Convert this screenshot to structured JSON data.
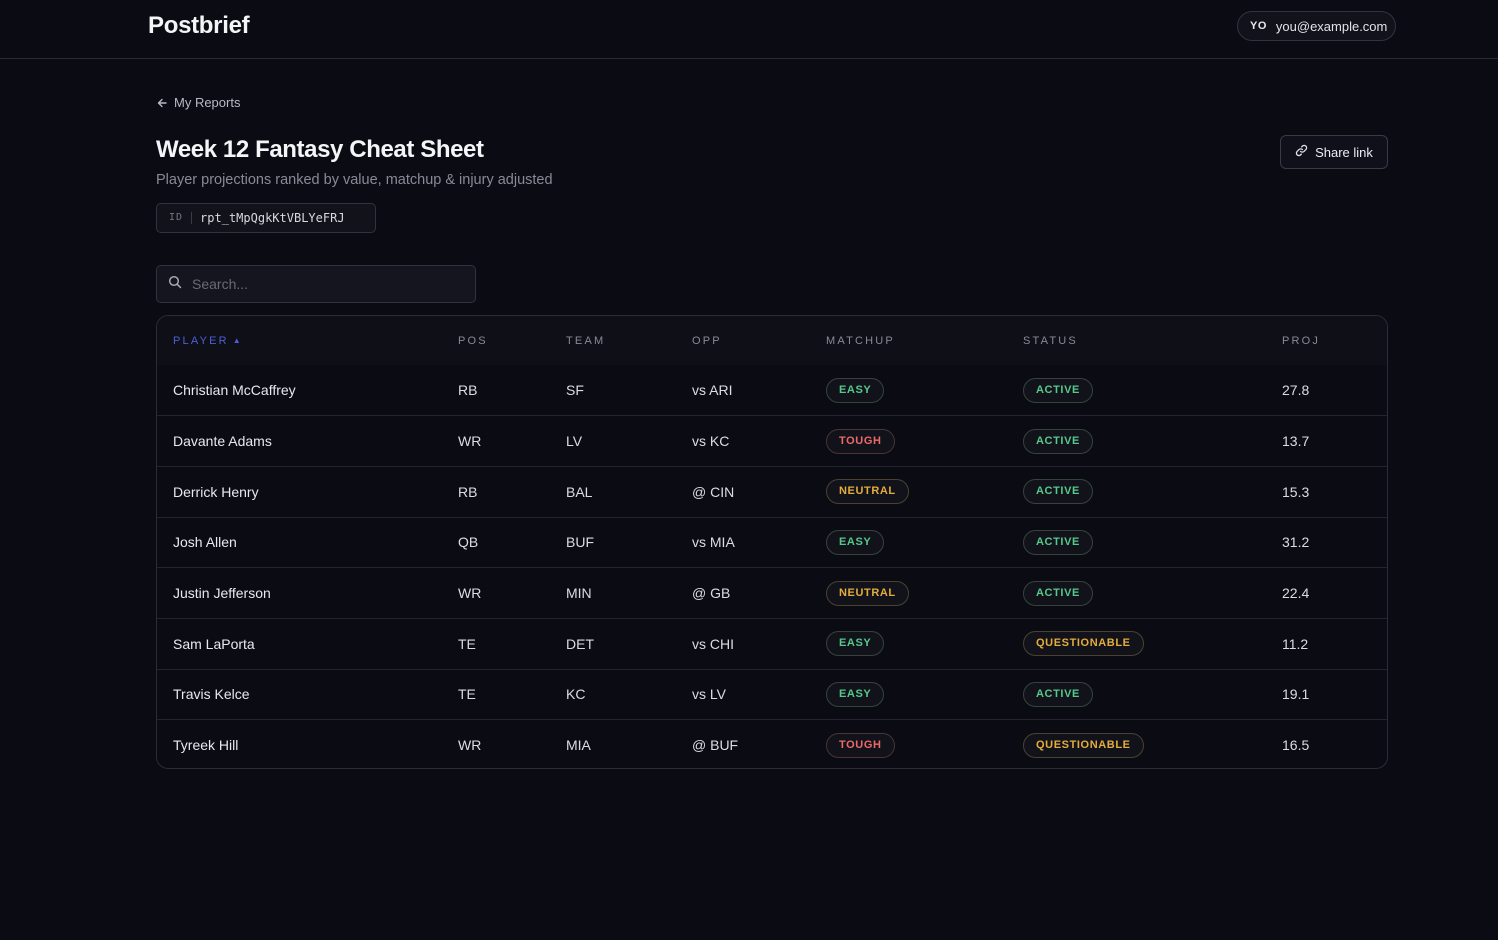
{
  "header": {
    "brand": "Postbrief",
    "user_initials": "YO",
    "user_email": "you@example.com"
  },
  "nav": {
    "back_label": "My Reports"
  },
  "report": {
    "title": "Week 12 Fantasy Cheat Sheet",
    "subtitle": "Player projections ranked by value, matchup & injury adjusted",
    "id_label": "ID",
    "id_value": "rpt_tMpQgkKtVBLYeFRJ",
    "share_label": "Share link"
  },
  "search": {
    "placeholder": "Search..."
  },
  "table": {
    "columns": [
      "PLAYER",
      "POS",
      "TEAM",
      "OPP",
      "MATCHUP",
      "STATUS",
      "PROJ"
    ],
    "sorted_column": "PLAYER",
    "sort_direction": "asc",
    "rows": [
      {
        "player": "Christian McCaffrey",
        "pos": "RB",
        "team": "SF",
        "opp": "vs ARI",
        "matchup": "EASY",
        "status": "ACTIVE",
        "proj": "27.8"
      },
      {
        "player": "Davante Adams",
        "pos": "WR",
        "team": "LV",
        "opp": "vs KC",
        "matchup": "TOUGH",
        "status": "ACTIVE",
        "proj": "13.7"
      },
      {
        "player": "Derrick Henry",
        "pos": "RB",
        "team": "BAL",
        "opp": "@ CIN",
        "matchup": "NEUTRAL",
        "status": "ACTIVE",
        "proj": "15.3"
      },
      {
        "player": "Josh Allen",
        "pos": "QB",
        "team": "BUF",
        "opp": "vs MIA",
        "matchup": "EASY",
        "status": "ACTIVE",
        "proj": "31.2"
      },
      {
        "player": "Justin Jefferson",
        "pos": "WR",
        "team": "MIN",
        "opp": "@ GB",
        "matchup": "NEUTRAL",
        "status": "ACTIVE",
        "proj": "22.4"
      },
      {
        "player": "Sam LaPorta",
        "pos": "TE",
        "team": "DET",
        "opp": "vs CHI",
        "matchup": "EASY",
        "status": "QUESTIONABLE",
        "proj": "11.2"
      },
      {
        "player": "Travis Kelce",
        "pos": "TE",
        "team": "KC",
        "opp": "vs LV",
        "matchup": "EASY",
        "status": "ACTIVE",
        "proj": "19.1"
      },
      {
        "player": "Tyreek Hill",
        "pos": "WR",
        "team": "MIA",
        "opp": "@ BUF",
        "matchup": "TOUGH",
        "status": "QUESTIONABLE",
        "proj": "16.5"
      }
    ]
  },
  "colors": {
    "background": "#0b0b14",
    "accent_sort": "#4d5fd6",
    "easy": "#55c98a",
    "tough": "#ec6a67",
    "neutral": "#e4ad3b",
    "active": "#55c98a",
    "questionable": "#e4ad3b"
  },
  "icons": {
    "back": "arrow-left-icon",
    "share": "link-icon",
    "search": "search-icon",
    "sort": "sort-ascending-icon"
  }
}
